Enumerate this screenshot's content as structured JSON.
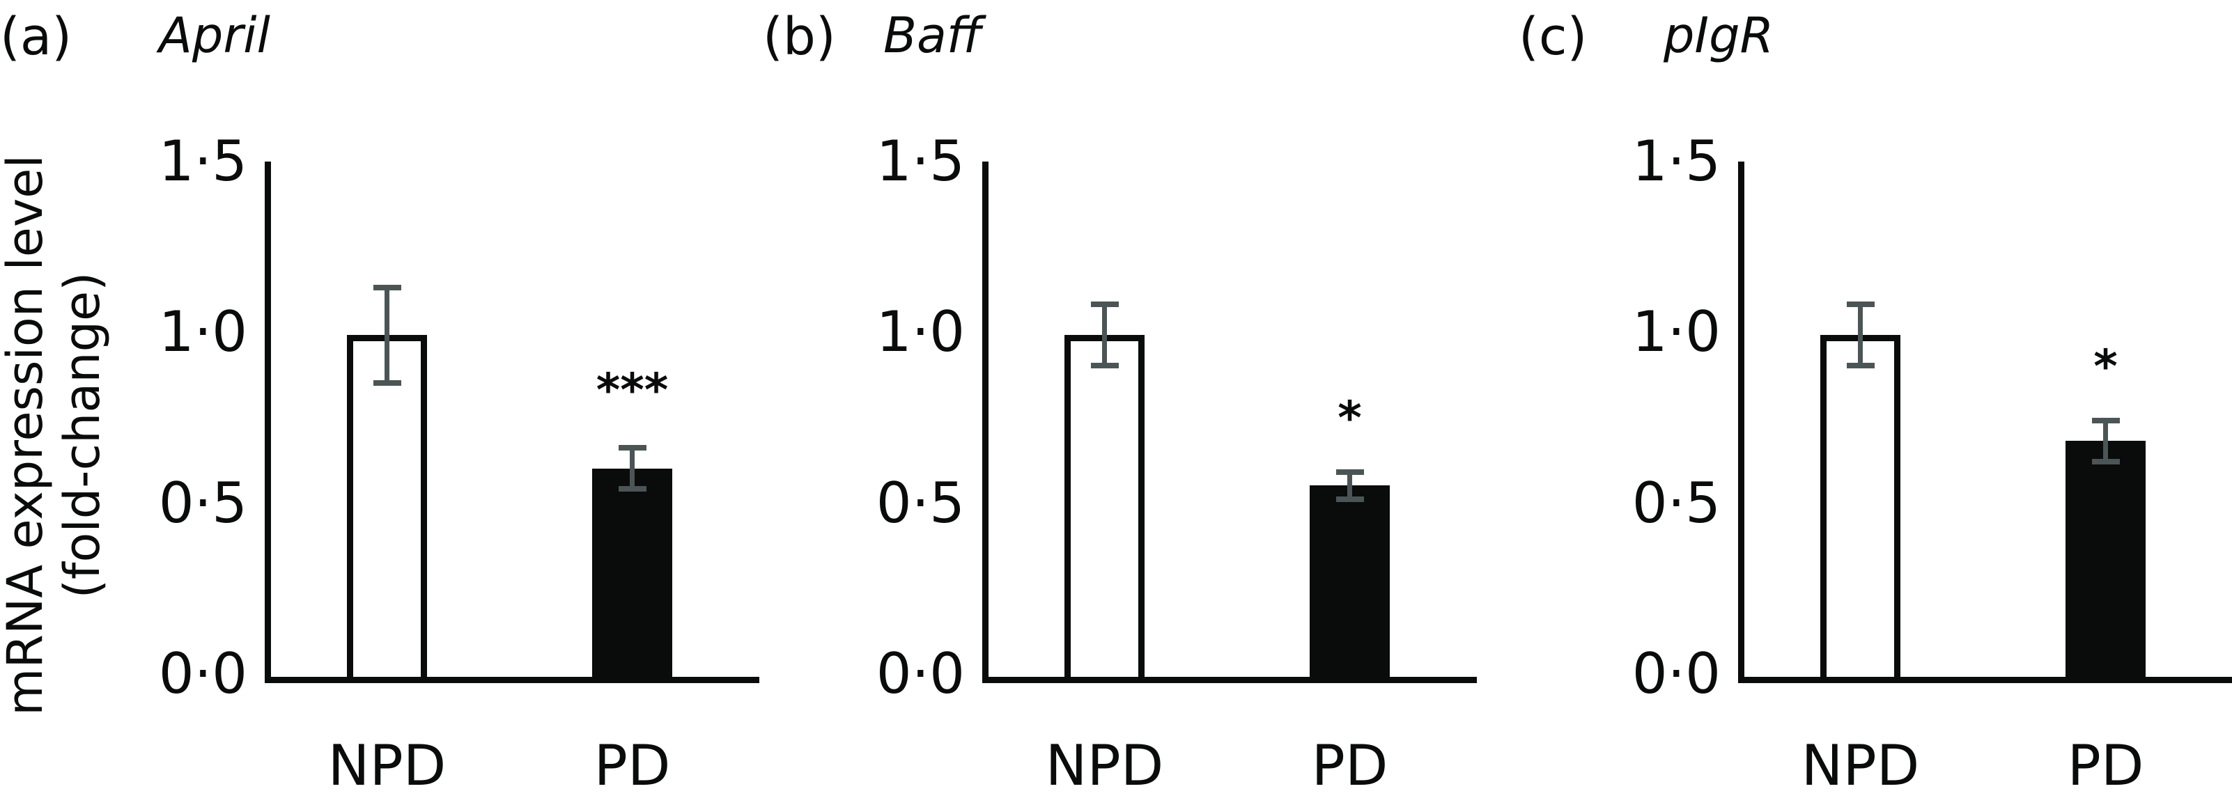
{
  "figure": {
    "y_axis_label_line1": "mRNA expression level",
    "y_axis_label_line2": "(fold-change)",
    "y_ticks": [
      "0·0",
      "0·5",
      "1·0",
      "1·5"
    ],
    "categories": [
      "NPD",
      "PD"
    ],
    "colors": {
      "npd_fill": "#ffffff",
      "pd_fill": "#0a0b0b",
      "error_bar": "#4c5556",
      "axis": "#0a0b0b"
    },
    "panels": [
      {
        "label": "(a)",
        "gene": "April",
        "significance": "***"
      },
      {
        "label": "(b)",
        "gene": "Baff",
        "significance": "*"
      },
      {
        "label": "(c)",
        "gene": "pIgR",
        "significance": "*"
      }
    ]
  },
  "chart_data": [
    {
      "type": "bar",
      "title": "(a) April",
      "categories": [
        "NPD",
        "PD"
      ],
      "values": [
        1.0,
        0.61
      ],
      "error": [
        0.14,
        0.06
      ],
      "significance": [
        "",
        "***"
      ],
      "xlabel": "",
      "ylabel": "mRNA expression level (fold-change)",
      "ylim": [
        0,
        1.5
      ],
      "yticks": [
        0.0,
        0.5,
        1.0,
        1.5
      ],
      "colors": [
        "#ffffff",
        "#0a0b0b"
      ],
      "grid": false,
      "legend": null
    },
    {
      "type": "bar",
      "title": "(b) Baff",
      "categories": [
        "NPD",
        "PD"
      ],
      "values": [
        1.0,
        0.56
      ],
      "error": [
        0.09,
        0.04
      ],
      "significance": [
        "",
        "*"
      ],
      "xlabel": "",
      "ylabel": "mRNA expression level (fold-change)",
      "ylim": [
        0,
        1.5
      ],
      "yticks": [
        0.0,
        0.5,
        1.0,
        1.5
      ],
      "colors": [
        "#ffffff",
        "#0a0b0b"
      ],
      "grid": false,
      "legend": null
    },
    {
      "type": "bar",
      "title": "(c) pIgR",
      "categories": [
        "NPD",
        "PD"
      ],
      "values": [
        1.0,
        0.69
      ],
      "error": [
        0.09,
        0.06
      ],
      "significance": [
        "",
        "*"
      ],
      "xlabel": "",
      "ylabel": "mRNA expression level (fold-change)",
      "ylim": [
        0,
        1.5
      ],
      "yticks": [
        0.0,
        0.5,
        1.0,
        1.5
      ],
      "colors": [
        "#ffffff",
        "#0a0b0b"
      ],
      "grid": false,
      "legend": null
    }
  ]
}
